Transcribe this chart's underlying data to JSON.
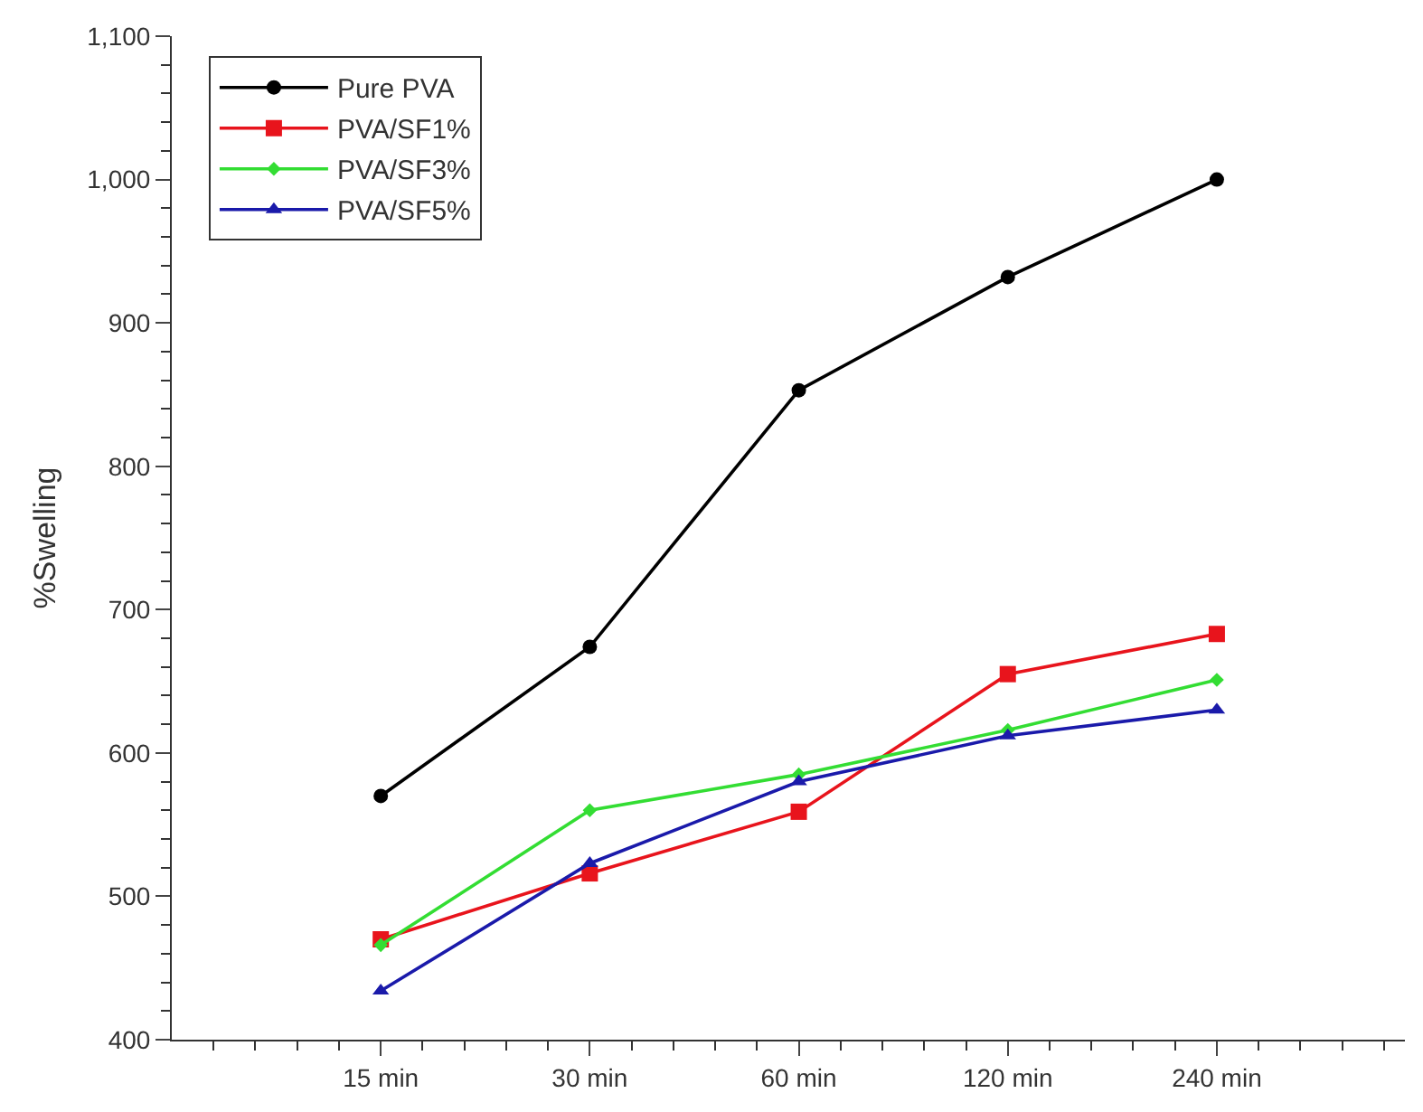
{
  "chart_data": {
    "type": "line",
    "ylabel": "%Swelling",
    "categories": [
      "15 min",
      "30 min",
      "60 min",
      "120 min",
      "240 min"
    ],
    "series": [
      {
        "name": "Pure PVA",
        "color": "#000000",
        "marker": "circle",
        "values": [
          570,
          674,
          853,
          932,
          1000
        ]
      },
      {
        "name": "PVA/SF1%",
        "color": "#e8141c",
        "marker": "square",
        "values": [
          470,
          516,
          559,
          655,
          683
        ]
      },
      {
        "name": "PVA/SF3%",
        "color": "#33dd33",
        "marker": "diamond",
        "values": [
          466,
          560,
          585,
          616,
          651
        ]
      },
      {
        "name": "PVA/SF5%",
        "color": "#1a1aaa",
        "marker": "triangle",
        "values": [
          434,
          523,
          580,
          612,
          630
        ]
      }
    ],
    "ylim": [
      400,
      1100
    ],
    "yticks": [
      400,
      500,
      600,
      700,
      800,
      900,
      {
        "value": 1000,
        "label": "1,000"
      },
      {
        "value": 1100,
        "label": "1,100"
      }
    ],
    "legend": "top left",
    "line_style": "solid"
  }
}
